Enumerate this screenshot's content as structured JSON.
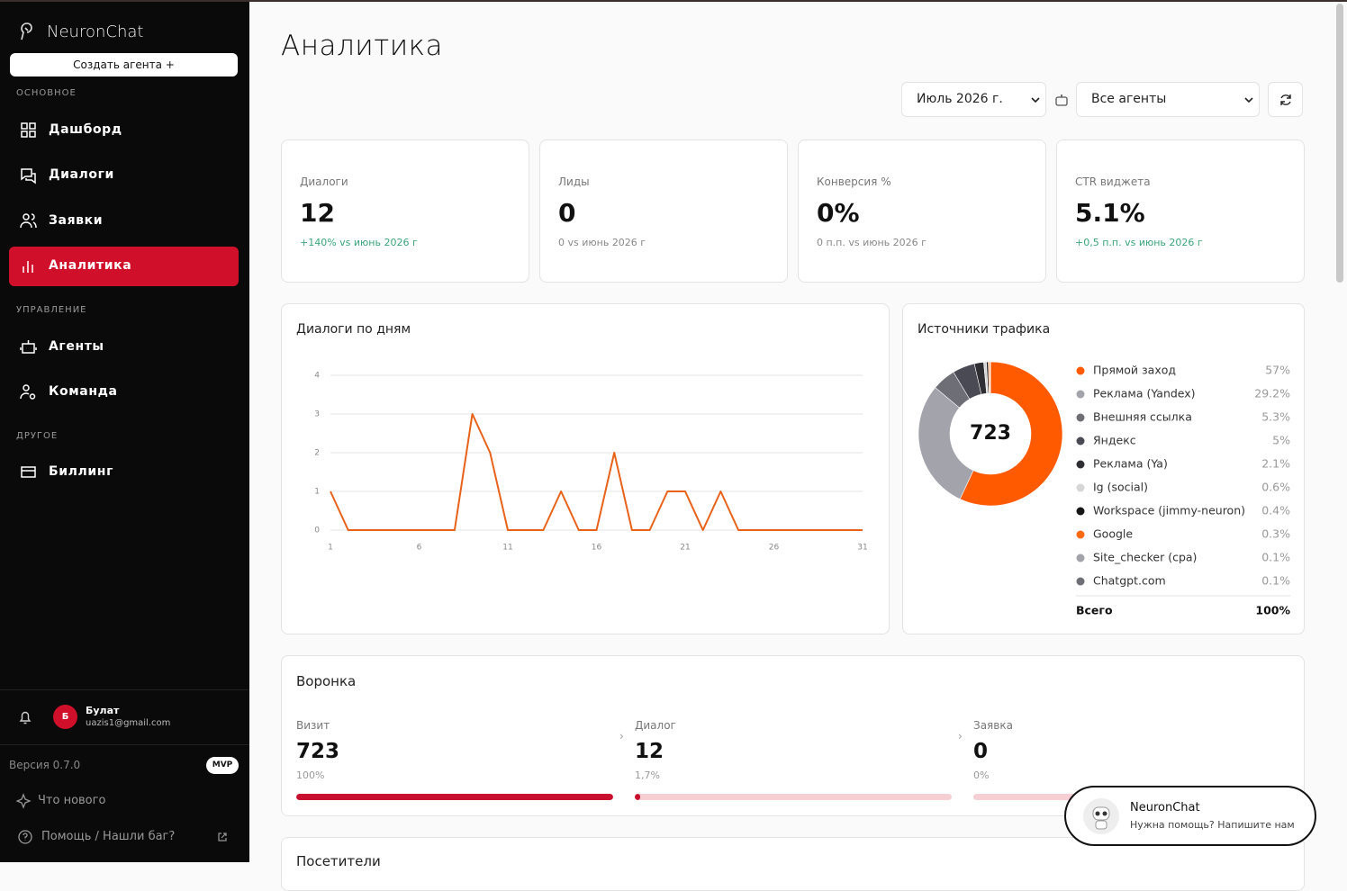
{
  "sidebar": {
    "brand": "NeuronChat",
    "create_button": "Создать агента +",
    "sections": [
      {
        "title": "ОСНОВНОЕ",
        "items": [
          {
            "label": "Дашборд",
            "active": false
          },
          {
            "label": "Диалоги",
            "active": false
          },
          {
            "label": "Заявки",
            "active": false
          },
          {
            "label": "Аналитика",
            "active": true
          }
        ]
      },
      {
        "title": "УПРАВЛЕНИЕ",
        "items": [
          {
            "label": "Агенты",
            "active": false
          },
          {
            "label": "Команда",
            "active": false
          }
        ]
      },
      {
        "title": "ДРУГОЕ",
        "items": [
          {
            "label": "Биллинг",
            "active": false
          }
        ]
      }
    ],
    "user": {
      "initial": "Б",
      "name": "Булат",
      "email": "uazis1@gmail.com"
    },
    "version": "Версия 0.7.0",
    "badge": "MVP",
    "links": [
      "Что нового",
      "Помощь / Нашли баг?"
    ]
  },
  "header": {
    "title": "Аналитика",
    "period": "Июль 2026 г.",
    "agent_filter": "Все агенты"
  },
  "kpis": [
    {
      "label": "Диалоги",
      "value": 12,
      "delta": "+140% vs июнь 2026 г",
      "positive": true
    },
    {
      "label": "Лиды",
      "value": 0,
      "delta": "0 vs июнь 2026 г",
      "positive": false
    },
    {
      "label": "Конверсия %",
      "value": "0%",
      "delta": "0 п.п. vs июнь 2026 г",
      "positive": false
    },
    {
      "label": "CTR виджета",
      "value": "5.1%",
      "delta": "+0,5 п.п. vs июнь 2026 г",
      "positive": true
    }
  ],
  "dialogs_chart": {
    "type": "line",
    "title": "Диалоги по дням",
    "x": [
      1,
      2,
      3,
      4,
      5,
      6,
      7,
      8,
      9,
      10,
      11,
      12,
      13,
      14,
      15,
      16,
      17,
      18,
      19,
      20,
      21,
      22,
      23,
      24,
      25,
      26,
      27,
      28,
      29,
      30,
      31
    ],
    "values": [
      1,
      0,
      0,
      0,
      0,
      0,
      0,
      0,
      3,
      2,
      0,
      0,
      0,
      1,
      0,
      0,
      2,
      0,
      0,
      1,
      1,
      0,
      1,
      0,
      0,
      0,
      0,
      0,
      0,
      0,
      0
    ],
    "color": "#e8621a",
    "xlim": [
      1,
      31
    ],
    "ylim": [
      0,
      4
    ],
    "xticks": [
      1,
      6,
      11,
      16,
      21,
      26,
      31
    ],
    "yticks": [
      0,
      1,
      2,
      3,
      4
    ],
    "grid": true
  },
  "traffic_sources": {
    "type": "pie",
    "title": "Источники трафика",
    "center_label": 723,
    "categories": [
      "Прямой заход",
      "Реклама (Yandex)",
      "Внешняя ссылка",
      "Яндекс",
      "Реклама (Ya)",
      "Ig (social)",
      "Workspace (jimmy-neuron)",
      "Google",
      "Site_checker (cpa)",
      "Chatgpt.com"
    ],
    "values": [
      57,
      29.2,
      5.3,
      5,
      2.1,
      0.6,
      0.4,
      0.3,
      0.1,
      0.1
    ],
    "value_labels": [
      "57%",
      "29.2%",
      "5.3%",
      "5%",
      "2.1%",
      "0.6%",
      "0.4%",
      "0.3%",
      "0.1%",
      "0.1%"
    ],
    "colors": [
      "#ff5a00",
      "#a3a3ab",
      "#6e6e76",
      "#4a4a55",
      "#2e2e33",
      "#d6d6d6",
      "#151515",
      "#ff6a10",
      "#a3a3ab",
      "#6e6e76"
    ],
    "total_label": "Всего",
    "total_value_label": "100%"
  },
  "funnel": {
    "title": "Воронка",
    "steps": [
      {
        "label": "Визит",
        "value": 723,
        "percent": 100,
        "percent_label": "100%"
      },
      {
        "label": "Диалог",
        "value": 12,
        "percent": 1.7,
        "percent_label": "1,7%"
      },
      {
        "label": "Заявка",
        "value": 0,
        "percent": 0,
        "percent_label": "0%"
      }
    ]
  },
  "visitors": {
    "title": "Посетители"
  },
  "chat_widget": {
    "title": "NeuronChat",
    "subtitle": "Нужна помощь? Напишите нам"
  }
}
